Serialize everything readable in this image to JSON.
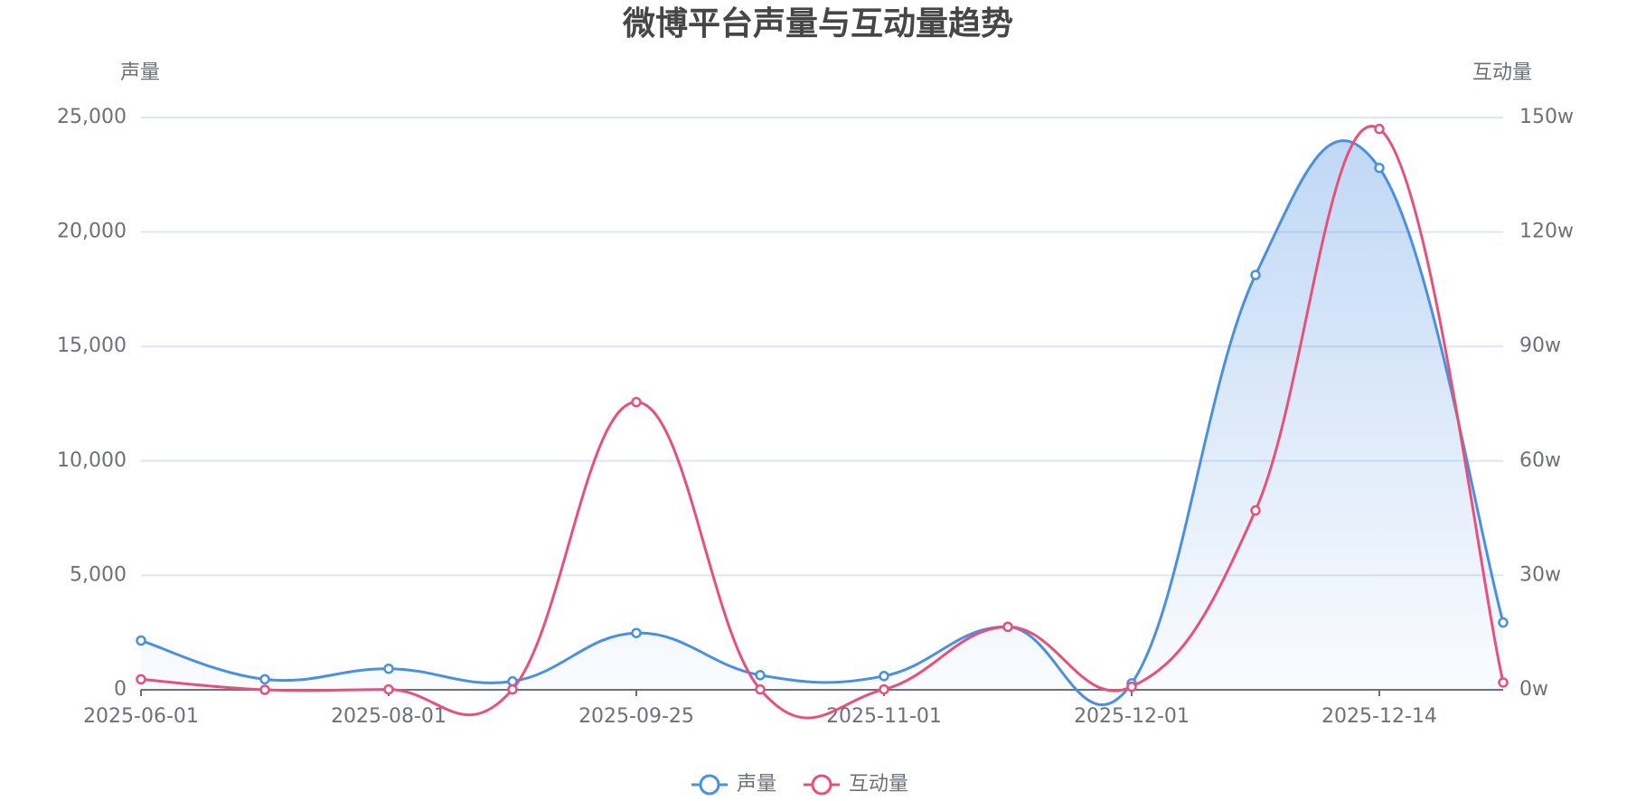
{
  "chart_data": {
    "type": "line",
    "title": "微博平台声量与互动量趋势",
    "y_label": "声量",
    "y2_label": "互动量",
    "categories": [
      "2025-06-01",
      null,
      "2025-08-01",
      null,
      "2025-09-25",
      null,
      "2025-11-01",
      null,
      "2025-12-01",
      null,
      "2025-12-14",
      null
    ],
    "series": [
      {
        "name": "声量",
        "color": "#4a90e2",
        "area": true,
        "values": [
          2150,
          460,
          920,
          370,
          2480,
          640,
          600,
          2750,
          280,
          18120,
          22800,
          2940
        ]
      },
      {
        "name": "互动量",
        "color": "#e8507a",
        "axis": "y2",
        "values": [
          2.75,
          0,
          0.1,
          0.1,
          75.4,
          0.1,
          0.1,
          16.5,
          0.8,
          47,
          147,
          1.9
        ]
      }
    ],
    "ylim": [
      0,
      25000
    ],
    "yticks": [
      0,
      {
        "value": 5000,
        "label": "5,000"
      },
      {
        "value": 10000,
        "label": "10,000"
      },
      {
        "value": 15000,
        "label": "15,000"
      },
      {
        "value": 20000,
        "label": "20,000"
      },
      {
        "value": 25000,
        "label": "25,000"
      }
    ],
    "y2lim": [
      0,
      150
    ],
    "y2ticks": [
      {
        "value": 0,
        "label": "0w"
      },
      {
        "value": 30,
        "label": "30w"
      },
      {
        "value": 60,
        "label": "60w"
      },
      {
        "value": 90,
        "label": "90w"
      },
      {
        "value": 120,
        "label": "120w"
      },
      {
        "value": 150,
        "label": "150w"
      }
    ],
    "grid": true,
    "legend": "bottom"
  }
}
